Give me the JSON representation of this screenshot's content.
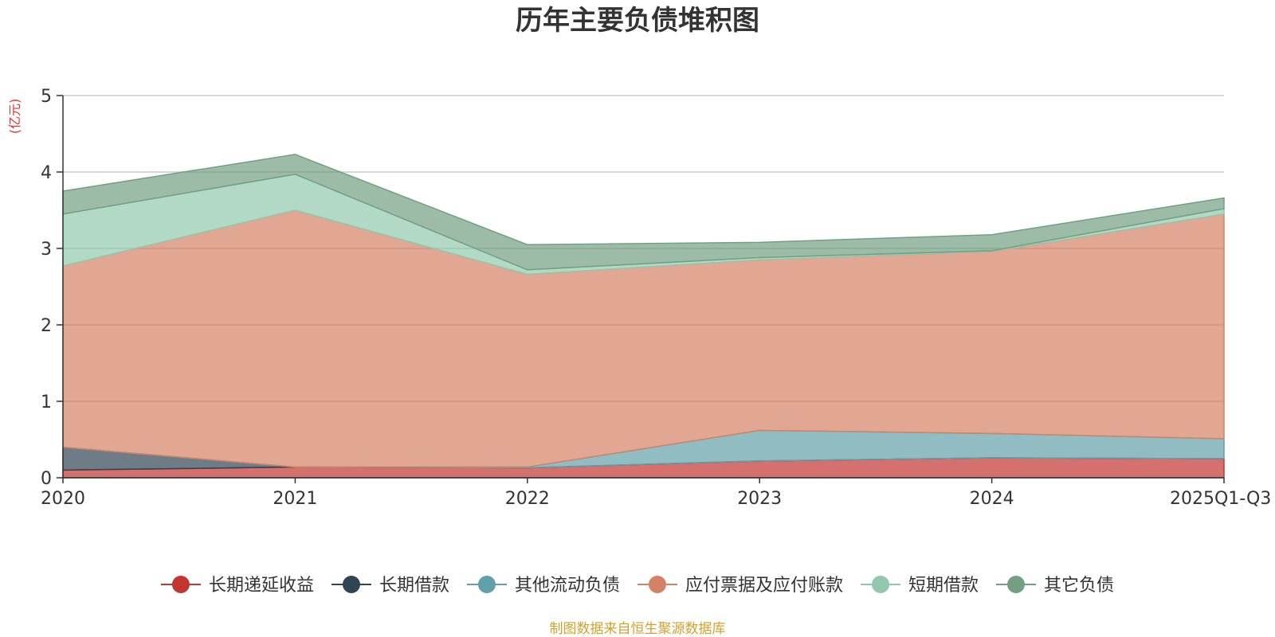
{
  "chart_data": {
    "type": "area",
    "stacked": true,
    "title": "历年主要负债堆积图",
    "unit_label": "(亿元)",
    "categories": [
      "2020",
      "2021",
      "2022",
      "2023",
      "2024",
      "2025Q1-Q3"
    ],
    "ylim": [
      0,
      5
    ],
    "yticks": [
      0,
      1,
      2,
      3,
      4,
      5
    ],
    "grid": true,
    "legend_position": "bottom",
    "series": [
      {
        "name": "长期递延收益",
        "color": "#c23531",
        "values": [
          0.1,
          0.14,
          0.13,
          0.22,
          0.26,
          0.25
        ]
      },
      {
        "name": "长期借款",
        "color": "#2f4554",
        "values": [
          0.3,
          0.0,
          0.0,
          0.0,
          0.0,
          0.0
        ]
      },
      {
        "name": "其他流动负债",
        "color": "#61a0a8",
        "values": [
          0.0,
          0.0,
          0.01,
          0.4,
          0.32,
          0.26
        ]
      },
      {
        "name": "应付票据及应付账款",
        "color": "#d48265",
        "values": [
          2.37,
          3.36,
          2.52,
          2.23,
          2.38,
          2.94
        ]
      },
      {
        "name": "短期借款",
        "color": "#91c7ae",
        "values": [
          0.68,
          0.47,
          0.06,
          0.03,
          0.01,
          0.07
        ]
      },
      {
        "name": "其它负债",
        "color": "#749f83",
        "values": [
          0.3,
          0.26,
          0.33,
          0.2,
          0.21,
          0.14
        ]
      }
    ]
  },
  "source_text": "制图数据来自恒生聚源数据库"
}
